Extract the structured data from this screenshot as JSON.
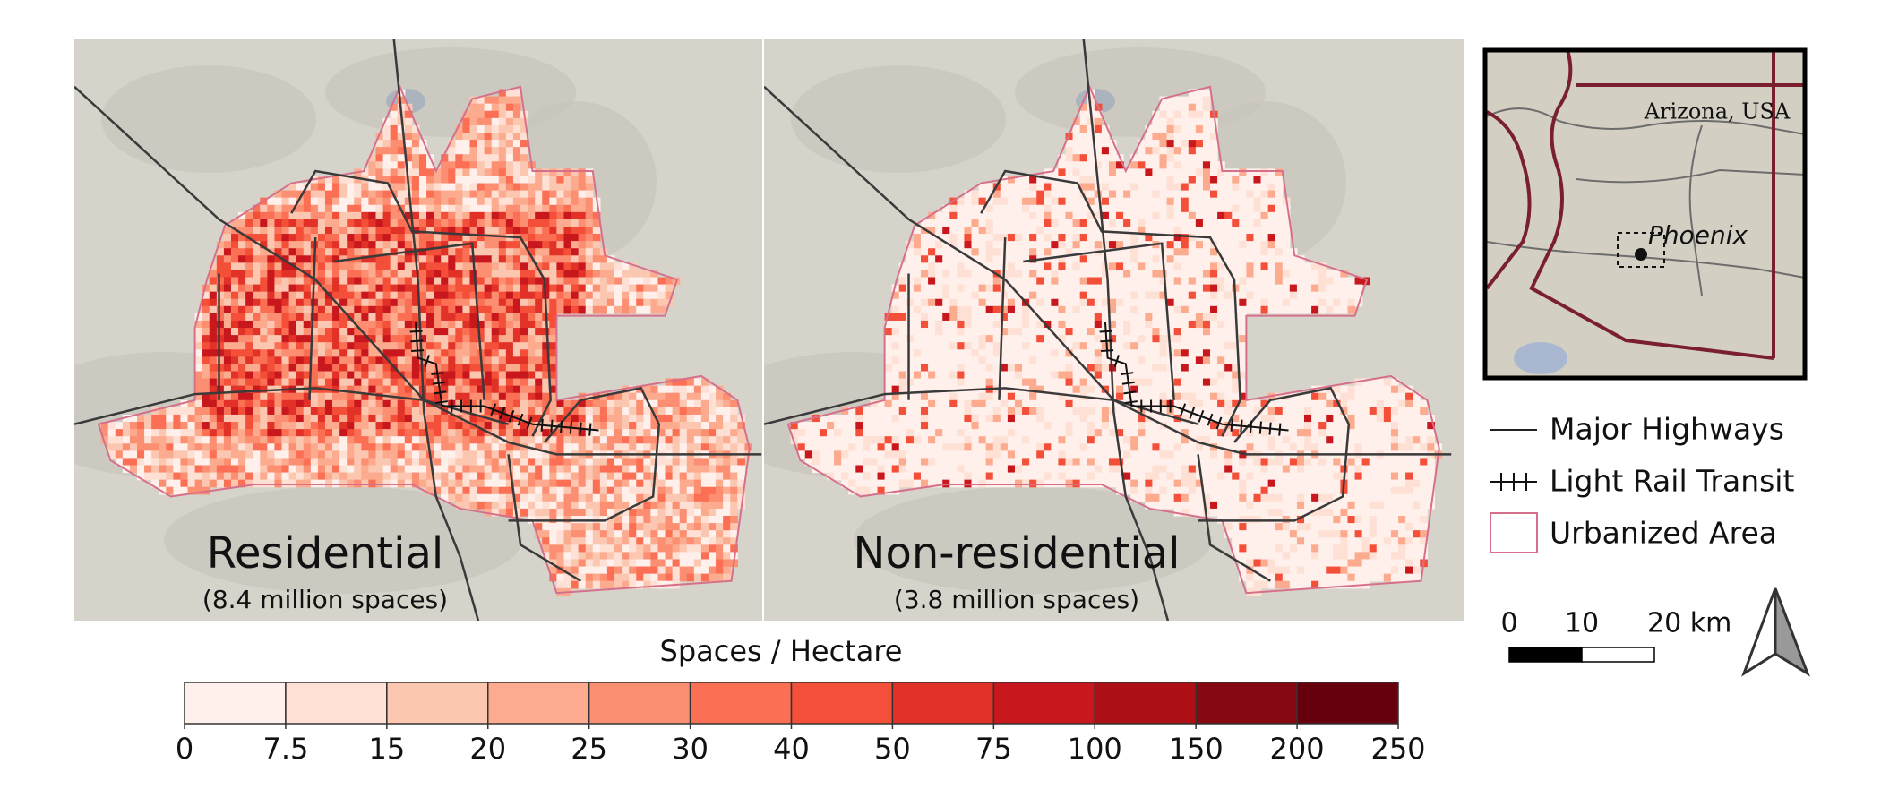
{
  "panels": [
    {
      "title": "Residential",
      "subtitle": "(8.4 million spaces)"
    },
    {
      "title": "Non-residential",
      "subtitle": "(3.8 million spaces)"
    }
  ],
  "colorbar": {
    "title": "Spaces / Hectare",
    "ticks": [
      0,
      7.5,
      15,
      20,
      25,
      30,
      40,
      50,
      75,
      100,
      150,
      200,
      250
    ],
    "colors": [
      "#fff0ec",
      "#fee0d4",
      "#fcc7b0",
      "#fcab8f",
      "#fc8e72",
      "#fb6f54",
      "#f44f39",
      "#e23228",
      "#c9181d",
      "#ad1116",
      "#860811",
      "#67000d"
    ]
  },
  "inset": {
    "region": "Arizona, USA",
    "city": "Phoenix"
  },
  "legend": [
    "Major Highways",
    "Light Rail Transit",
    "Urbanized Area"
  ],
  "scale_bar": {
    "ticks": [
      0,
      10,
      {
        "value": 20,
        "label": "20 km"
      }
    ]
  }
}
